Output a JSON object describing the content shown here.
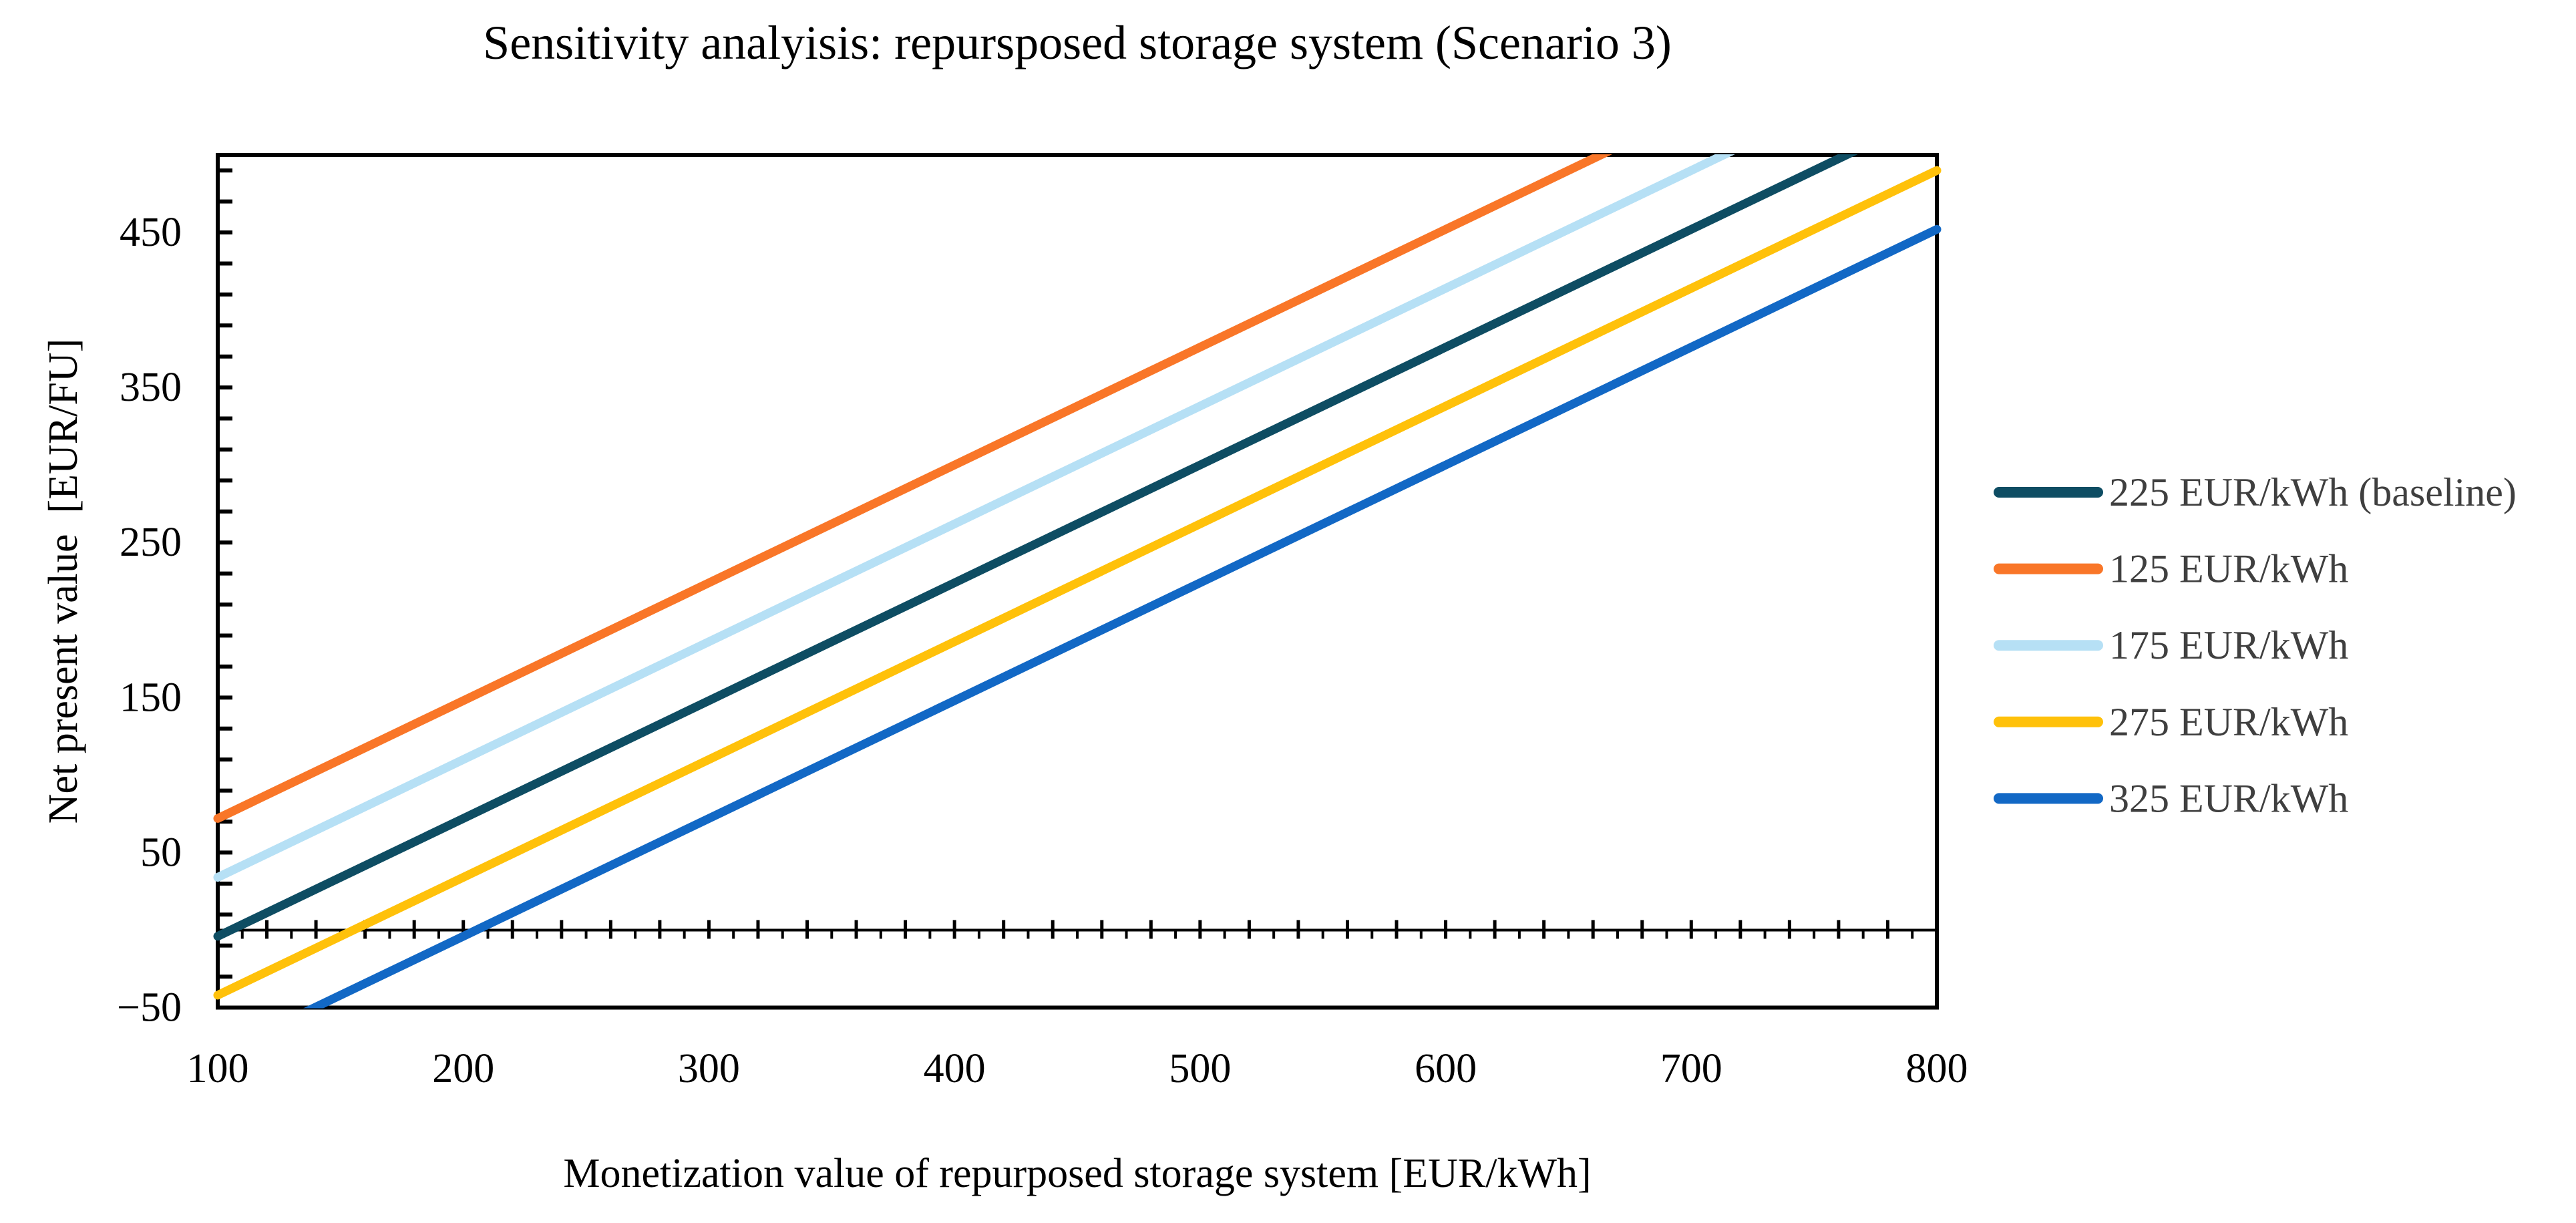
{
  "figure": {
    "background": "#FFFFFF",
    "text_color": "#000000",
    "legend_text_color": "#3F3F3F",
    "axis_color": "#000000"
  },
  "chart_data": {
    "type": "line",
    "title": "Sensitivity analyisis: repursposed storage system (Scenario 3)",
    "xlabel": "Monetization value of repurposed storage system [EUR/kWh]",
    "ylabel": "Net present value  [EUR/FU]",
    "xlim": [
      100,
      800
    ],
    "ylim": [
      -50,
      500
    ],
    "x": [
      100,
      200,
      300,
      400,
      500,
      600,
      700,
      800
    ],
    "series": [
      {
        "name": "225 EUR/kWh (baseline)",
        "color": "#0E4D63",
        "values": [
          -4,
          72,
          148,
          224,
          300,
          376,
          452,
          528
        ]
      },
      {
        "name": "125 EUR/kWh",
        "color": "#F97628",
        "values": [
          72,
          148,
          224,
          300,
          376,
          452,
          528,
          604
        ]
      },
      {
        "name": "175 EUR/kWh",
        "color": "#B6E0F5",
        "values": [
          34,
          110,
          186,
          262,
          338,
          414,
          490,
          566
        ]
      },
      {
        "name": "275 EUR/kWh",
        "color": "#FFC10A",
        "values": [
          -42,
          34,
          110,
          186,
          262,
          338,
          414,
          490
        ]
      },
      {
        "name": "325 EUR/kWh",
        "color": "#1268C5",
        "values": [
          -80,
          -4,
          72,
          148,
          224,
          300,
          376,
          452
        ]
      }
    ],
    "x_tick_labels": [
      "100",
      "200",
      "300",
      "400",
      "500",
      "600",
      "700",
      "800"
    ],
    "y_tick_labels": [
      "−50",
      "50",
      "150",
      "250",
      "350",
      "450"
    ],
    "y_tick_values": [
      -50,
      50,
      150,
      250,
      350,
      450
    ],
    "y_minor_tick_unit": 20,
    "x_major_tick_unit": 20,
    "x_minor_tick_unit": 10,
    "grid": false,
    "zero_line": true,
    "legend_position": "right"
  }
}
